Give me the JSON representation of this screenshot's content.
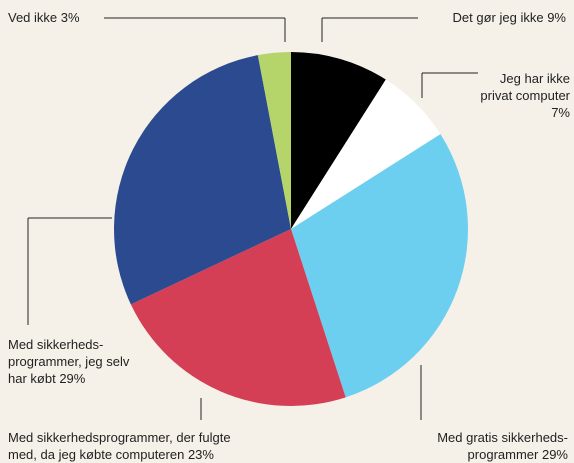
{
  "chart_data": {
    "type": "pie",
    "categories": [
      "Det gør jeg ikke",
      "Jeg har ikke\nprivat computer",
      "Med gratis sikkerheds-\nprogrammer",
      "Med sikkerhedsprogrammer, der fulgte\nmed, da jeg købte computeren",
      "Med sikkerheds-\nprogrammer, jeg selv\nhar købt",
      "Ved ikke"
    ],
    "values": [
      9,
      7,
      29,
      23,
      29,
      3
    ],
    "value_labels": [
      "9%",
      "7%",
      "29%",
      "23%",
      "29%",
      "3%"
    ],
    "colors": [
      "#000000",
      "#ffffff",
      "#6dcff0",
      "#d43f55",
      "#2b4a8f",
      "#b5d56a"
    ]
  }
}
